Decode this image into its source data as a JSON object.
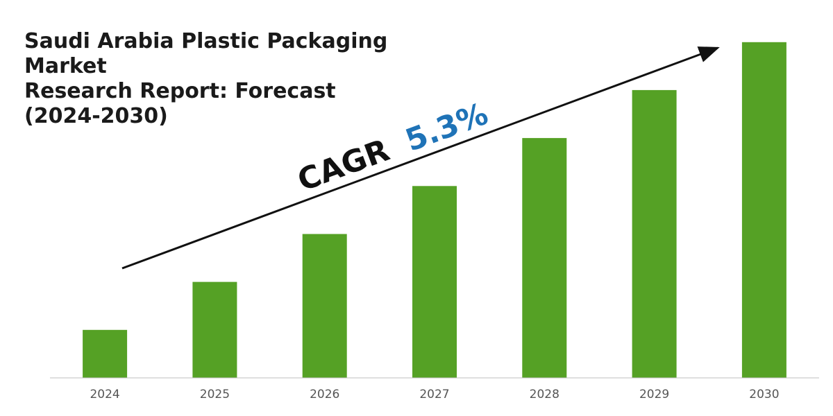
{
  "chart_data": {
    "type": "bar",
    "title_lines": [
      "Saudi Arabia Plastic Packaging Market",
      "Research Report: Forecast",
      "(2024-2030)"
    ],
    "categories": [
      "2024",
      "2025",
      "2026",
      "2027",
      "2028",
      "2029",
      "2030"
    ],
    "values": [
      1.0,
      2.0,
      3.0,
      4.0,
      5.0,
      6.0,
      7.0
    ],
    "ylim": [
      0,
      7.3
    ],
    "grid": false,
    "bar_color": "#55a125",
    "annotation": {
      "prefix": "CAGR",
      "value": "5.3%",
      "prefix_color": "#111111",
      "value_color": "#1f73b7"
    }
  }
}
